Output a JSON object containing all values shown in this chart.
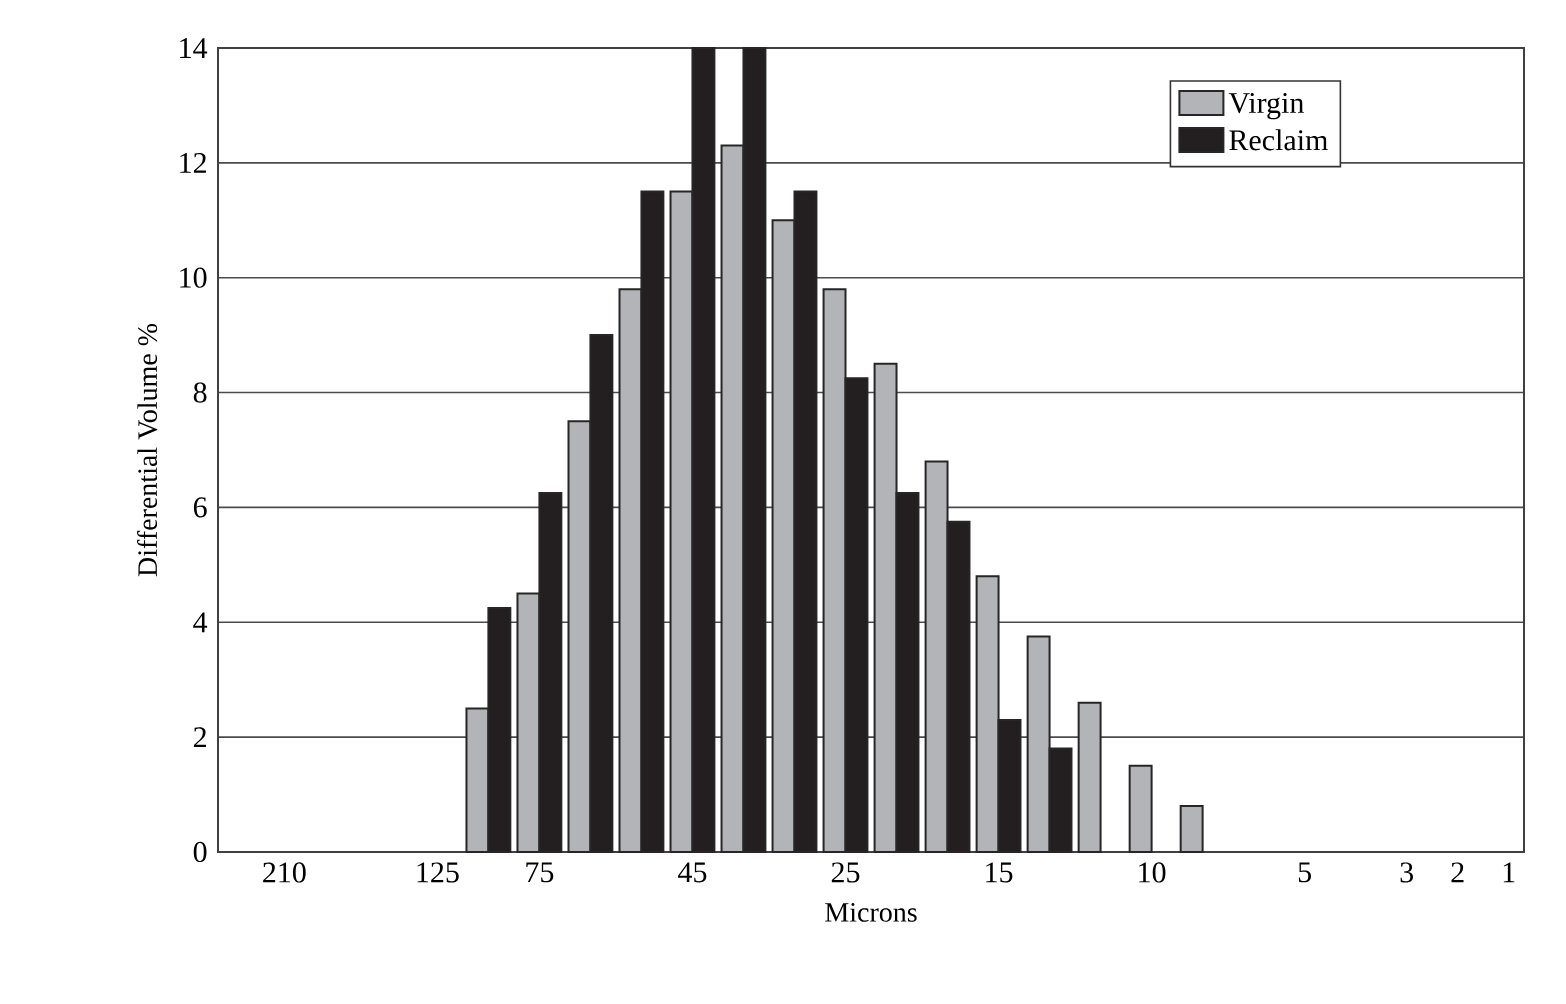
{
  "chart_data": {
    "type": "bar",
    "xlabel": "Microns",
    "ylabel": "Differential Volume %",
    "categories": [
      "210",
      null,
      null,
      "125",
      null,
      "75",
      null,
      null,
      "45",
      null,
      null,
      "25",
      null,
      null,
      "15",
      null,
      null,
      "10",
      null,
      null,
      "5",
      null,
      "3",
      "2",
      "1"
    ],
    "series": [
      {
        "name": "Virgin",
        "color": "#b3b4b8",
        "values": [
          null,
          null,
          null,
          null,
          2.5,
          4.5,
          7.5,
          9.8,
          11.5,
          12.3,
          11.0,
          9.8,
          8.5,
          6.8,
          4.8,
          3.75,
          2.6,
          1.5,
          0.8,
          null,
          null,
          null,
          null,
          null,
          null
        ]
      },
      {
        "name": "Reclaim",
        "color": "#231f20",
        "values": [
          null,
          null,
          null,
          null,
          4.25,
          6.25,
          9.0,
          11.5,
          14,
          14,
          11.5,
          8.25,
          6.25,
          5.75,
          2.3,
          1.8,
          null,
          null,
          null,
          null,
          null,
          null,
          null,
          null,
          null
        ]
      }
    ],
    "ylim": [
      0,
      14
    ],
    "yticks": [
      0,
      2,
      4,
      6,
      8,
      10,
      12,
      14
    ],
    "grid": "y",
    "legend": "top right"
  }
}
